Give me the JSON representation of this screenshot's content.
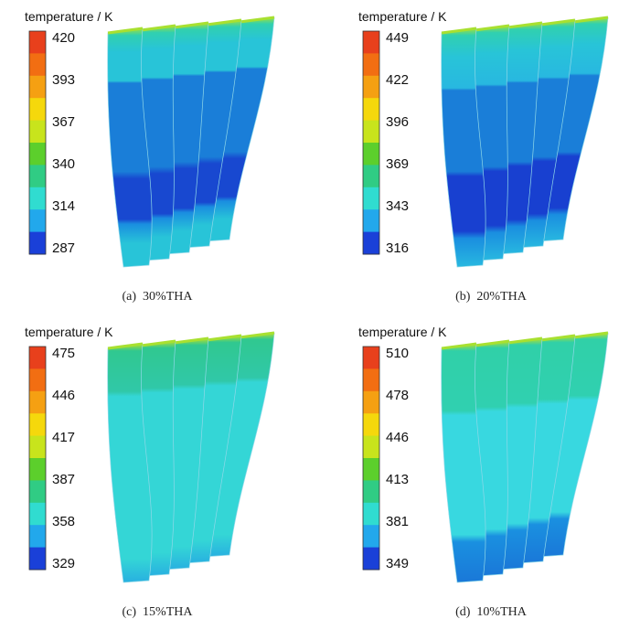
{
  "panels": [
    {
      "legend_title": "temperature / K",
      "ticks": [
        420,
        393,
        367,
        340,
        314,
        287
      ],
      "caption": "(a)  30%THA"
    },
    {
      "legend_title": "temperature / K",
      "ticks": [
        449,
        422,
        396,
        369,
        343,
        316
      ],
      "caption": "(b)  20%THA"
    },
    {
      "legend_title": "temperature / K",
      "ticks": [
        475,
        446,
        417,
        387,
        358,
        329
      ],
      "caption": "(c)  15%THA"
    },
    {
      "legend_title": "temperature / K",
      "ticks": [
        510,
        478,
        446,
        413,
        381,
        349
      ],
      "caption": "(d)  10%THA"
    }
  ]
}
